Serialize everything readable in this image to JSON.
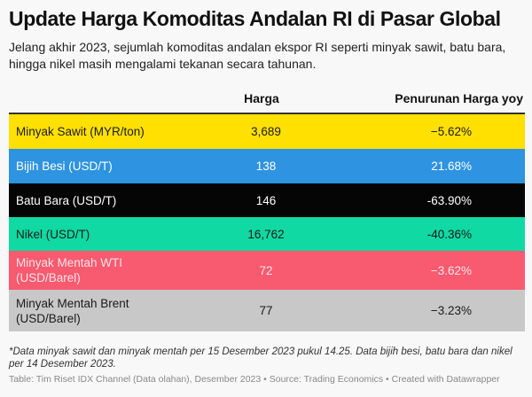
{
  "title": "Update Harga Komoditas Andalan RI di Pasar Global",
  "subtitle": "Jelang akhir 2023, sejumlah komoditas andalan ekspor RI seperti minyak sawit, batu bara, hingga nikel masih mengalami tekanan secara tahunan.",
  "columns": {
    "price": "Harga",
    "change": "Penurunan Harga yoy"
  },
  "rows": [
    {
      "name": "Minyak Sawit (MYR/ton)",
      "price": "3,689",
      "change": "−5.62%",
      "bg": "#ffe000",
      "fg": "#1a1a1a"
    },
    {
      "name": "Bijih Besi (USD/T)",
      "price": "138",
      "change": "21.68%",
      "bg": "#2e93e0",
      "fg": "#ffffff"
    },
    {
      "name": "Batu Bara (USD/T)",
      "price": "146",
      "change": "-63.90%",
      "bg": "#050505",
      "fg": "#ffffff"
    },
    {
      "name": "Nikel (USD/T)",
      "price": "16,762",
      "change": "-40.36%",
      "bg": "#10d9a3",
      "fg": "#1a1a1a"
    },
    {
      "name": "Minyak Mentah WTI (USD/Barel)",
      "price": "72",
      "change": "−3.62%",
      "bg": "#f85a70",
      "fg": "#fbe4e7"
    },
    {
      "name": "Minyak Mentah Brent (USD/Barel)",
      "price": "77",
      "change": "−3.23%",
      "bg": "#c8c8c8",
      "fg": "#1a1a1a"
    }
  ],
  "footnote": "*Data minyak sawit dan minyak mentah per 15 Desember 2023 pukul 14.25. Data bijih besi, batu bara dan nikel per 14 Desember 2023.",
  "source": "Table: Tim Riset IDX Channel (Data olahan), Desember 2023 • Source: Trading Economics • Created with Datawrapper"
}
